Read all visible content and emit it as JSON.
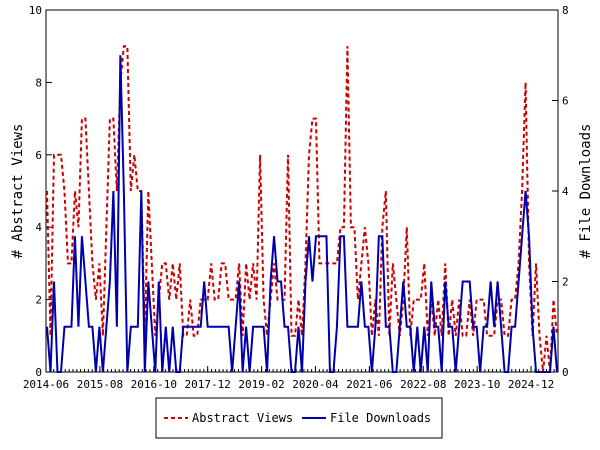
{
  "chart_data": {
    "type": "line",
    "title": "",
    "ylabel_left": "# Abstract Views",
    "ylabel_right": "# File Downloads",
    "ylim_left": [
      0,
      10
    ],
    "ylim_right": [
      0,
      8
    ],
    "yticks_left": [
      "0",
      "2",
      "4",
      "6",
      "8",
      "10"
    ],
    "yticks_right": [
      "0",
      "2",
      "4",
      "6",
      "8"
    ],
    "xticks": [
      "2014-06",
      "2015-08",
      "2016-10",
      "2017-12",
      "2019-02",
      "2020-04",
      "2021-06",
      "2022-08",
      "2023-10",
      "2024-12"
    ],
    "xlim": [
      "2014-06",
      "2025-07"
    ],
    "legend": "bottom-center",
    "colors": {
      "abstract_views": "#cc0000",
      "file_downloads": "#0000aa"
    },
    "series": [
      {
        "name": "Abstract Views",
        "axis": "left",
        "style": "dashed",
        "values": [
          5,
          1,
          6,
          6,
          6,
          5,
          3,
          3,
          5,
          4,
          7,
          7,
          5,
          3,
          2,
          3,
          1,
          4,
          7,
          7,
          5,
          8,
          9,
          9,
          5,
          6,
          5,
          5,
          1,
          5,
          3,
          1,
          2,
          3,
          3,
          2,
          3,
          2,
          3,
          1,
          1,
          2,
          1,
          1,
          2,
          2,
          2,
          3,
          2,
          2,
          3,
          3,
          2,
          2,
          2,
          3,
          1,
          3,
          2,
          3,
          2,
          6,
          2,
          1,
          2,
          3,
          2,
          2,
          2,
          6,
          1,
          1,
          2,
          1,
          3,
          6,
          7,
          7,
          3,
          3,
          3,
          3,
          3,
          3,
          4,
          4,
          9,
          4,
          4,
          2,
          3,
          4,
          3,
          1,
          2,
          1,
          4,
          5,
          1,
          3,
          2,
          1,
          2,
          4,
          1,
          2,
          2,
          2,
          3,
          1,
          2,
          1,
          2,
          1,
          3,
          1,
          2,
          1,
          2,
          1,
          1,
          2,
          1,
          2,
          2,
          2,
          1,
          1,
          1,
          2,
          2,
          1,
          1,
          2,
          2,
          3,
          5,
          8,
          3,
          1,
          3,
          1,
          0,
          1,
          0,
          2,
          1
        ]
      },
      {
        "name": "File Downloads",
        "axis": "right",
        "style": "solid",
        "values": [
          1,
          0,
          2,
          0,
          0,
          1,
          1,
          1,
          3,
          1,
          3,
          2,
          1,
          1,
          0,
          1,
          0,
          1,
          2,
          4,
          1,
          7,
          4,
          0,
          1,
          1,
          1,
          4,
          0,
          2,
          1,
          0,
          2,
          0,
          1,
          0,
          1,
          0,
          0,
          1,
          1,
          1,
          1,
          1,
          1,
          2,
          1,
          1,
          1,
          1,
          1,
          1,
          1,
          0,
          1,
          2,
          0,
          1,
          0,
          1,
          1,
          1,
          1,
          0,
          2,
          3,
          2,
          2,
          1,
          1,
          0,
          0,
          1,
          0,
          2,
          3,
          2,
          3,
          3,
          3,
          3,
          0,
          0,
          1,
          3,
          3,
          1,
          1,
          1,
          1,
          2,
          1,
          1,
          0,
          1,
          3,
          3,
          1,
          1,
          0,
          0,
          1,
          2,
          1,
          1,
          0,
          1,
          0,
          1,
          0,
          2,
          1,
          1,
          0,
          2,
          1,
          1,
          0,
          1,
          2,
          2,
          2,
          1,
          1,
          0,
          1,
          1,
          2,
          1,
          2,
          1,
          0,
          0,
          1,
          1,
          2,
          3,
          4,
          3,
          1,
          0,
          0,
          0,
          0,
          0,
          1,
          0
        ]
      }
    ]
  }
}
